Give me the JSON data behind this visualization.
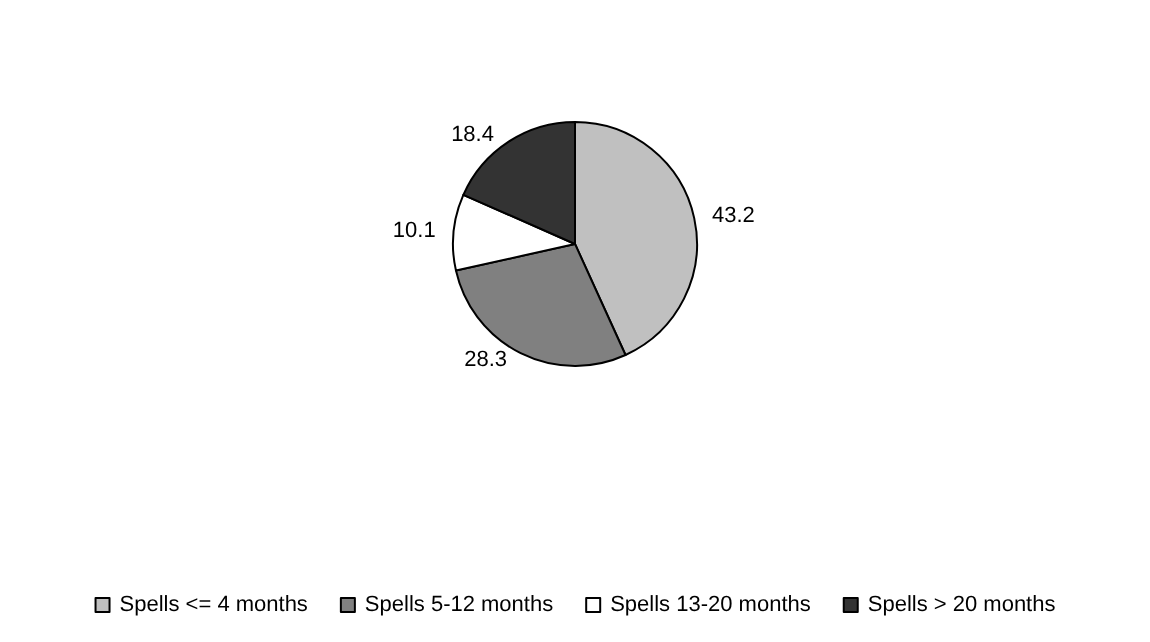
{
  "chart_data": {
    "type": "pie",
    "categories": [
      "Spells <= 4 months",
      "Spells 5-12 months",
      "Spells 13-20 months",
      "Spells > 20 months"
    ],
    "values": [
      43.2,
      28.3,
      10.1,
      18.4
    ],
    "colors": [
      "#c0c0c0",
      "#808080",
      "#ffffff",
      "#333333"
    ],
    "data_labels": true,
    "legend": "bottom"
  }
}
